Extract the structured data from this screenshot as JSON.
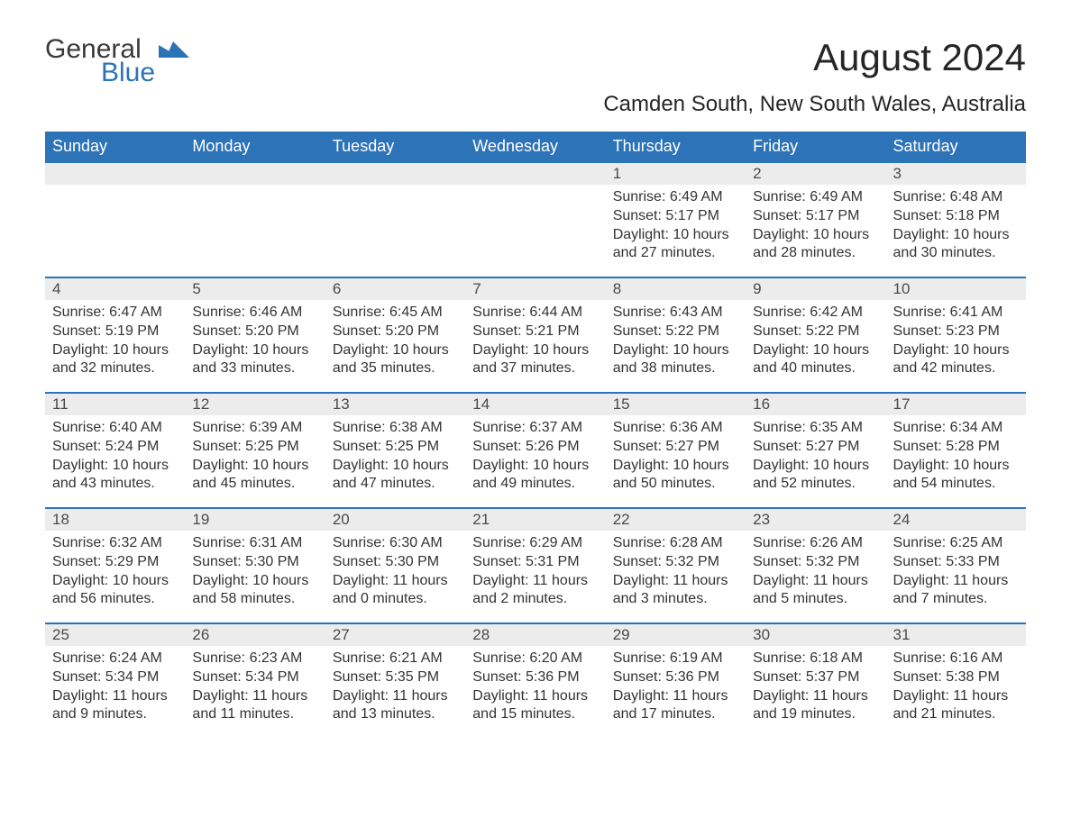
{
  "logo": {
    "text_general": "General",
    "text_blue": "Blue",
    "mark_color": "#2d73b8"
  },
  "header": {
    "month_title": "August 2024",
    "location": "Camden South, New South Wales, Australia"
  },
  "colors": {
    "header_bg": "#2d73b8",
    "header_text": "#ffffff",
    "daynum_bg": "#ececec",
    "daynum_border": "#2d73b8",
    "body_text": "#333333",
    "page_bg": "#ffffff"
  },
  "weekdays": [
    "Sunday",
    "Monday",
    "Tuesday",
    "Wednesday",
    "Thursday",
    "Friday",
    "Saturday"
  ],
  "weeks": [
    [
      null,
      null,
      null,
      null,
      {
        "n": "1",
        "sunrise": "Sunrise: 6:49 AM",
        "sunset": "Sunset: 5:17 PM",
        "daylight": "Daylight: 10 hours and 27 minutes."
      },
      {
        "n": "2",
        "sunrise": "Sunrise: 6:49 AM",
        "sunset": "Sunset: 5:17 PM",
        "daylight": "Daylight: 10 hours and 28 minutes."
      },
      {
        "n": "3",
        "sunrise": "Sunrise: 6:48 AM",
        "sunset": "Sunset: 5:18 PM",
        "daylight": "Daylight: 10 hours and 30 minutes."
      }
    ],
    [
      {
        "n": "4",
        "sunrise": "Sunrise: 6:47 AM",
        "sunset": "Sunset: 5:19 PM",
        "daylight": "Daylight: 10 hours and 32 minutes."
      },
      {
        "n": "5",
        "sunrise": "Sunrise: 6:46 AM",
        "sunset": "Sunset: 5:20 PM",
        "daylight": "Daylight: 10 hours and 33 minutes."
      },
      {
        "n": "6",
        "sunrise": "Sunrise: 6:45 AM",
        "sunset": "Sunset: 5:20 PM",
        "daylight": "Daylight: 10 hours and 35 minutes."
      },
      {
        "n": "7",
        "sunrise": "Sunrise: 6:44 AM",
        "sunset": "Sunset: 5:21 PM",
        "daylight": "Daylight: 10 hours and 37 minutes."
      },
      {
        "n": "8",
        "sunrise": "Sunrise: 6:43 AM",
        "sunset": "Sunset: 5:22 PM",
        "daylight": "Daylight: 10 hours and 38 minutes."
      },
      {
        "n": "9",
        "sunrise": "Sunrise: 6:42 AM",
        "sunset": "Sunset: 5:22 PM",
        "daylight": "Daylight: 10 hours and 40 minutes."
      },
      {
        "n": "10",
        "sunrise": "Sunrise: 6:41 AM",
        "sunset": "Sunset: 5:23 PM",
        "daylight": "Daylight: 10 hours and 42 minutes."
      }
    ],
    [
      {
        "n": "11",
        "sunrise": "Sunrise: 6:40 AM",
        "sunset": "Sunset: 5:24 PM",
        "daylight": "Daylight: 10 hours and 43 minutes."
      },
      {
        "n": "12",
        "sunrise": "Sunrise: 6:39 AM",
        "sunset": "Sunset: 5:25 PM",
        "daylight": "Daylight: 10 hours and 45 minutes."
      },
      {
        "n": "13",
        "sunrise": "Sunrise: 6:38 AM",
        "sunset": "Sunset: 5:25 PM",
        "daylight": "Daylight: 10 hours and 47 minutes."
      },
      {
        "n": "14",
        "sunrise": "Sunrise: 6:37 AM",
        "sunset": "Sunset: 5:26 PM",
        "daylight": "Daylight: 10 hours and 49 minutes."
      },
      {
        "n": "15",
        "sunrise": "Sunrise: 6:36 AM",
        "sunset": "Sunset: 5:27 PM",
        "daylight": "Daylight: 10 hours and 50 minutes."
      },
      {
        "n": "16",
        "sunrise": "Sunrise: 6:35 AM",
        "sunset": "Sunset: 5:27 PM",
        "daylight": "Daylight: 10 hours and 52 minutes."
      },
      {
        "n": "17",
        "sunrise": "Sunrise: 6:34 AM",
        "sunset": "Sunset: 5:28 PM",
        "daylight": "Daylight: 10 hours and 54 minutes."
      }
    ],
    [
      {
        "n": "18",
        "sunrise": "Sunrise: 6:32 AM",
        "sunset": "Sunset: 5:29 PM",
        "daylight": "Daylight: 10 hours and 56 minutes."
      },
      {
        "n": "19",
        "sunrise": "Sunrise: 6:31 AM",
        "sunset": "Sunset: 5:30 PM",
        "daylight": "Daylight: 10 hours and 58 minutes."
      },
      {
        "n": "20",
        "sunrise": "Sunrise: 6:30 AM",
        "sunset": "Sunset: 5:30 PM",
        "daylight": "Daylight: 11 hours and 0 minutes."
      },
      {
        "n": "21",
        "sunrise": "Sunrise: 6:29 AM",
        "sunset": "Sunset: 5:31 PM",
        "daylight": "Daylight: 11 hours and 2 minutes."
      },
      {
        "n": "22",
        "sunrise": "Sunrise: 6:28 AM",
        "sunset": "Sunset: 5:32 PM",
        "daylight": "Daylight: 11 hours and 3 minutes."
      },
      {
        "n": "23",
        "sunrise": "Sunrise: 6:26 AM",
        "sunset": "Sunset: 5:32 PM",
        "daylight": "Daylight: 11 hours and 5 minutes."
      },
      {
        "n": "24",
        "sunrise": "Sunrise: 6:25 AM",
        "sunset": "Sunset: 5:33 PM",
        "daylight": "Daylight: 11 hours and 7 minutes."
      }
    ],
    [
      {
        "n": "25",
        "sunrise": "Sunrise: 6:24 AM",
        "sunset": "Sunset: 5:34 PM",
        "daylight": "Daylight: 11 hours and 9 minutes."
      },
      {
        "n": "26",
        "sunrise": "Sunrise: 6:23 AM",
        "sunset": "Sunset: 5:34 PM",
        "daylight": "Daylight: 11 hours and 11 minutes."
      },
      {
        "n": "27",
        "sunrise": "Sunrise: 6:21 AM",
        "sunset": "Sunset: 5:35 PM",
        "daylight": "Daylight: 11 hours and 13 minutes."
      },
      {
        "n": "28",
        "sunrise": "Sunrise: 6:20 AM",
        "sunset": "Sunset: 5:36 PM",
        "daylight": "Daylight: 11 hours and 15 minutes."
      },
      {
        "n": "29",
        "sunrise": "Sunrise: 6:19 AM",
        "sunset": "Sunset: 5:36 PM",
        "daylight": "Daylight: 11 hours and 17 minutes."
      },
      {
        "n": "30",
        "sunrise": "Sunrise: 6:18 AM",
        "sunset": "Sunset: 5:37 PM",
        "daylight": "Daylight: 11 hours and 19 minutes."
      },
      {
        "n": "31",
        "sunrise": "Sunrise: 6:16 AM",
        "sunset": "Sunset: 5:38 PM",
        "daylight": "Daylight: 11 hours and 21 minutes."
      }
    ]
  ]
}
